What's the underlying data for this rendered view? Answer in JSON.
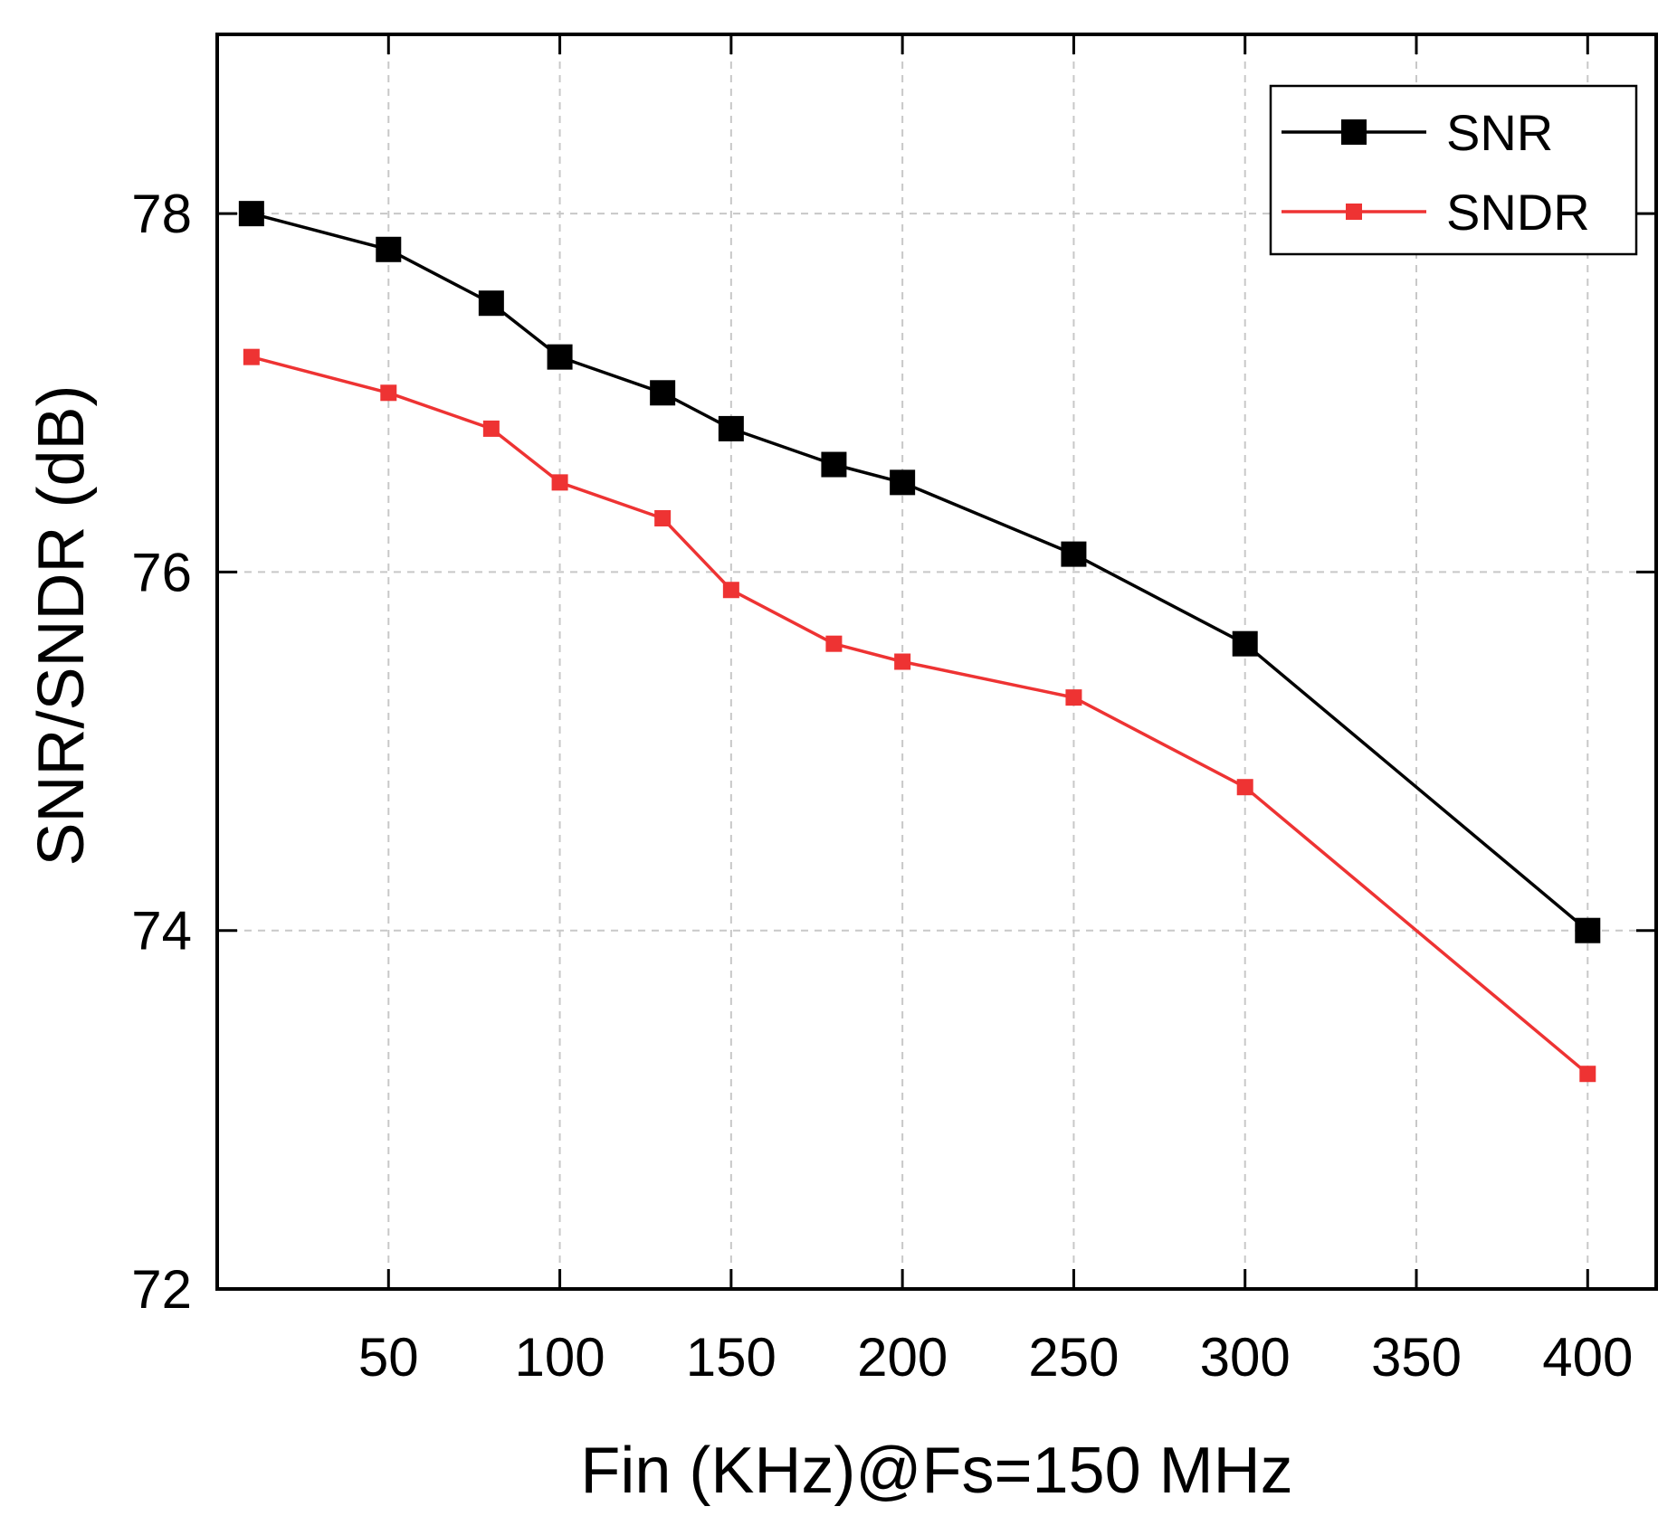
{
  "chart_data": {
    "type": "line",
    "title": "",
    "xlabel": "Fin (KHz)@Fs=150 MHz",
    "ylabel": "SNR/SNDR (dB)",
    "xlim": [
      0,
      420
    ],
    "ylim": [
      72,
      79
    ],
    "xticks": [
      50,
      100,
      150,
      200,
      250,
      300,
      350,
      400
    ],
    "yticks": [
      72,
      74,
      76,
      78
    ],
    "grid": true,
    "legend_position": "top-right",
    "series": [
      {
        "name": "SNR",
        "color": "#000000",
        "marker": "square",
        "x": [
          10,
          50,
          80,
          100,
          130,
          150,
          180,
          200,
          250,
          300,
          400
        ],
        "y": [
          78.0,
          77.8,
          77.5,
          77.2,
          77.0,
          76.8,
          76.6,
          76.5,
          76.1,
          75.6,
          74.0
        ]
      },
      {
        "name": "SNDR",
        "color": "#ee3333",
        "marker": "square",
        "x": [
          10,
          50,
          80,
          100,
          130,
          150,
          180,
          200,
          250,
          300,
          400
        ],
        "y": [
          77.2,
          77.0,
          76.8,
          76.5,
          76.3,
          75.9,
          75.6,
          75.5,
          75.3,
          74.8,
          73.2
        ]
      }
    ]
  }
}
